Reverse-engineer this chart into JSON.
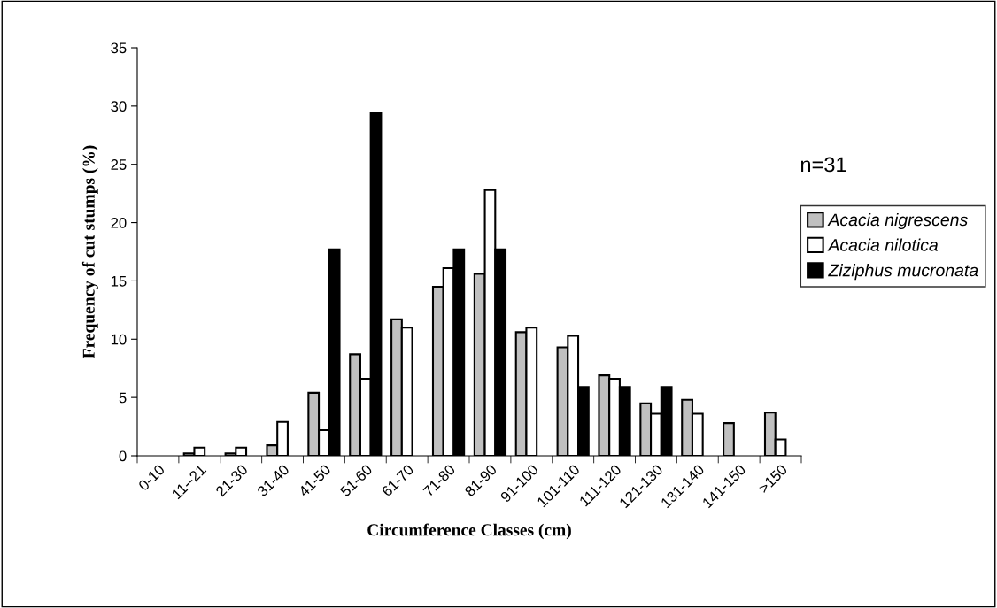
{
  "chart_data": {
    "type": "bar",
    "xlabel": "Circumference Classes (cm)",
    "ylabel": "Frequency of cut stumps (%)",
    "categories": [
      "0-10",
      "11--21",
      "21-30",
      "31-40",
      "41-50",
      "51-60",
      "61-70",
      "71-80",
      "81-90",
      "91-100",
      "101-110",
      "111-120",
      "121-130",
      "131-140",
      "141-150",
      ">150"
    ],
    "series": [
      {
        "name": "Acacia nigrescens",
        "color": "#c0c0c0",
        "values": [
          null,
          0.2,
          0.2,
          0.9,
          5.4,
          8.7,
          11.7,
          14.5,
          15.6,
          10.6,
          9.3,
          6.9,
          4.5,
          4.8,
          2.8,
          3.7
        ]
      },
      {
        "name": "Acacia nilotica",
        "color": "#ffffff",
        "values": [
          null,
          0.7,
          0.7,
          2.9,
          2.2,
          6.6,
          11.0,
          16.1,
          22.8,
          11.0,
          10.3,
          6.6,
          3.6,
          3.6,
          null,
          1.4
        ]
      },
      {
        "name": "Ziziphus mucronata",
        "color": "#000000",
        "values": [
          null,
          null,
          null,
          null,
          17.7,
          29.4,
          null,
          17.7,
          17.7,
          null,
          5.9,
          5.9,
          5.9,
          null,
          null,
          null
        ]
      }
    ],
    "ylim": [
      0,
      35
    ],
    "yticks": [
      0,
      5,
      10,
      15,
      20,
      25,
      30,
      35
    ],
    "annotations": [
      "n=31"
    ],
    "legend": "right",
    "grid": false
  }
}
